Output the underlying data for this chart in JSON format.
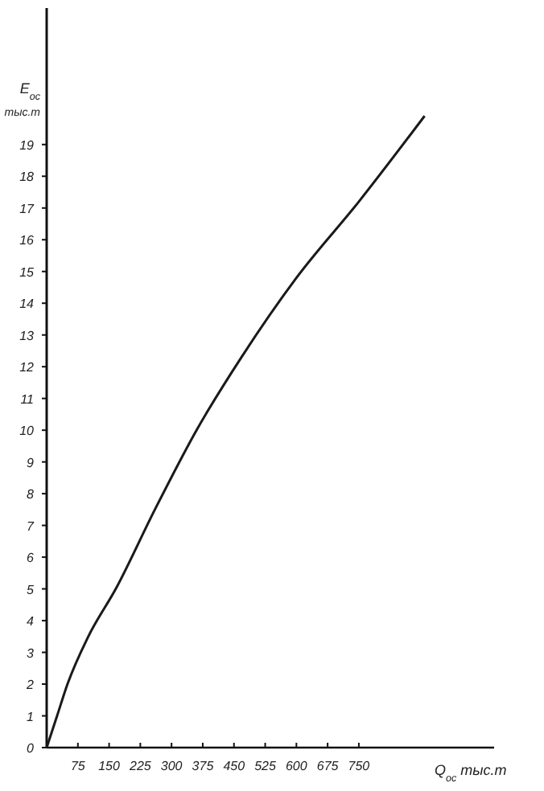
{
  "chart_data": {
    "type": "line",
    "xlabel": "Q$_{ос}$ тыс.т",
    "ylabel": "E$_{ос}$ тыс.т",
    "x": [
      0,
      25,
      50,
      100,
      166,
      260,
      360,
      468,
      600,
      750,
      908
    ],
    "series": [
      {
        "color": "#1a1a1a",
        "values": [
          0,
          1,
          2,
          3.5,
          5,
          7.5,
          10,
          12.3,
          14.8,
          17.2,
          19.9
        ]
      }
    ],
    "xlim": [
      0,
      1075
    ],
    "xticks": [
      75,
      150,
      225,
      300,
      375,
      450,
      525,
      600,
      675,
      750
    ],
    "ylim": [
      0,
      23.3
    ],
    "yticks": [
      0,
      1,
      2,
      3,
      4,
      5,
      6,
      7,
      8,
      9,
      10,
      11,
      12,
      13,
      14,
      15,
      16,
      17,
      18,
      19
    ],
    "grid": false,
    "marker": "none",
    "line_style": "solid"
  }
}
